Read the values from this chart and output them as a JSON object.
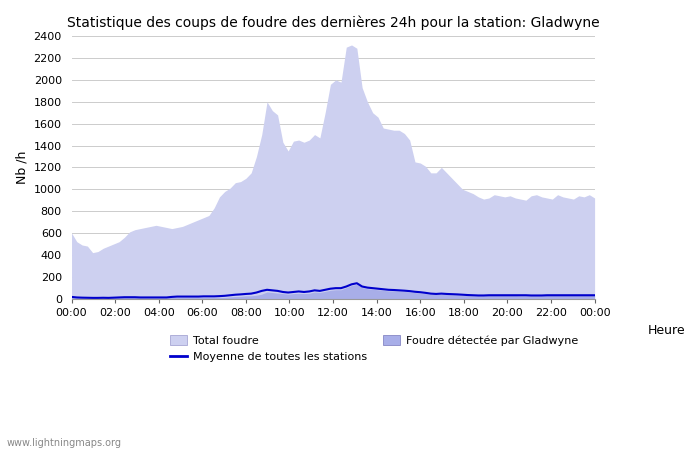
{
  "title": "Statistique des coups de foudre des dernières 24h pour la station: Gladwyne",
  "xlabel": "Heure",
  "ylabel": "Nb /h",
  "ylim": [
    0,
    2400
  ],
  "yticks": [
    0,
    200,
    400,
    600,
    800,
    1000,
    1200,
    1400,
    1600,
    1800,
    2000,
    2200,
    2400
  ],
  "xtick_labels": [
    "00:00",
    "02:00",
    "04:00",
    "06:00",
    "08:00",
    "10:00",
    "12:00",
    "14:00",
    "16:00",
    "18:00",
    "20:00",
    "22:00",
    "00:00"
  ],
  "watermark": "www.lightningmaps.org",
  "total_foudre_color": "#cdd0f0",
  "foudre_gladwyne_color": "#a8aee8",
  "moyenne_color": "#0000cc",
  "total_foudre": [
    600,
    520,
    490,
    480,
    420,
    430,
    460,
    480,
    500,
    520,
    560,
    610,
    630,
    640,
    650,
    660,
    670,
    660,
    650,
    640,
    650,
    660,
    680,
    700,
    720,
    740,
    760,
    830,
    930,
    980,
    1010,
    1060,
    1070,
    1100,
    1150,
    1300,
    1500,
    1800,
    1720,
    1680,
    1430,
    1350,
    1440,
    1450,
    1430,
    1450,
    1500,
    1470,
    1700,
    1960,
    2000,
    1980,
    2300,
    2320,
    2290,
    1930,
    1800,
    1700,
    1660,
    1560,
    1550,
    1540,
    1540,
    1510,
    1450,
    1250,
    1240,
    1210,
    1150,
    1150,
    1200,
    1150,
    1100,
    1050,
    1000,
    980,
    960,
    930,
    910,
    920,
    950,
    940,
    930,
    940,
    920,
    910,
    900,
    940,
    950,
    930,
    920,
    910,
    950,
    930,
    920,
    910,
    940,
    930,
    950,
    920
  ],
  "foudre_gladwyne": [
    10,
    8,
    7,
    6,
    5,
    5,
    6,
    5,
    8,
    8,
    10,
    10,
    10,
    8,
    8,
    8,
    8,
    8,
    8,
    10,
    10,
    10,
    10,
    10,
    10,
    10,
    10,
    10,
    10,
    10,
    15,
    18,
    20,
    25,
    25,
    30,
    40,
    60,
    55,
    50,
    45,
    40,
    45,
    48,
    45,
    48,
    60,
    55,
    65,
    75,
    80,
    80,
    100,
    120,
    130,
    100,
    90,
    85,
    80,
    75,
    70,
    70,
    68,
    65,
    60,
    55,
    50,
    45,
    40,
    38,
    40,
    38,
    35,
    35,
    30,
    28,
    25,
    25,
    25,
    28,
    28,
    28,
    28,
    28,
    28,
    25,
    25,
    25,
    25,
    25,
    28,
    28,
    28,
    28,
    28,
    28,
    28,
    28,
    28,
    28
  ],
  "moyenne": [
    15,
    10,
    8,
    7,
    6,
    6,
    7,
    6,
    8,
    10,
    12,
    12,
    12,
    10,
    10,
    10,
    10,
    10,
    10,
    15,
    18,
    18,
    18,
    18,
    18,
    20,
    20,
    20,
    22,
    25,
    30,
    35,
    38,
    42,
    45,
    55,
    70,
    80,
    75,
    70,
    60,
    55,
    60,
    65,
    60,
    65,
    75,
    70,
    80,
    90,
    95,
    95,
    110,
    130,
    140,
    110,
    100,
    95,
    90,
    85,
    80,
    78,
    75,
    72,
    68,
    62,
    58,
    52,
    45,
    42,
    45,
    42,
    40,
    38,
    35,
    32,
    30,
    28,
    28,
    30,
    30,
    30,
    30,
    30,
    30,
    30,
    30,
    28,
    28,
    28,
    30,
    30,
    30,
    30,
    30,
    30,
    30,
    30,
    30,
    30
  ]
}
